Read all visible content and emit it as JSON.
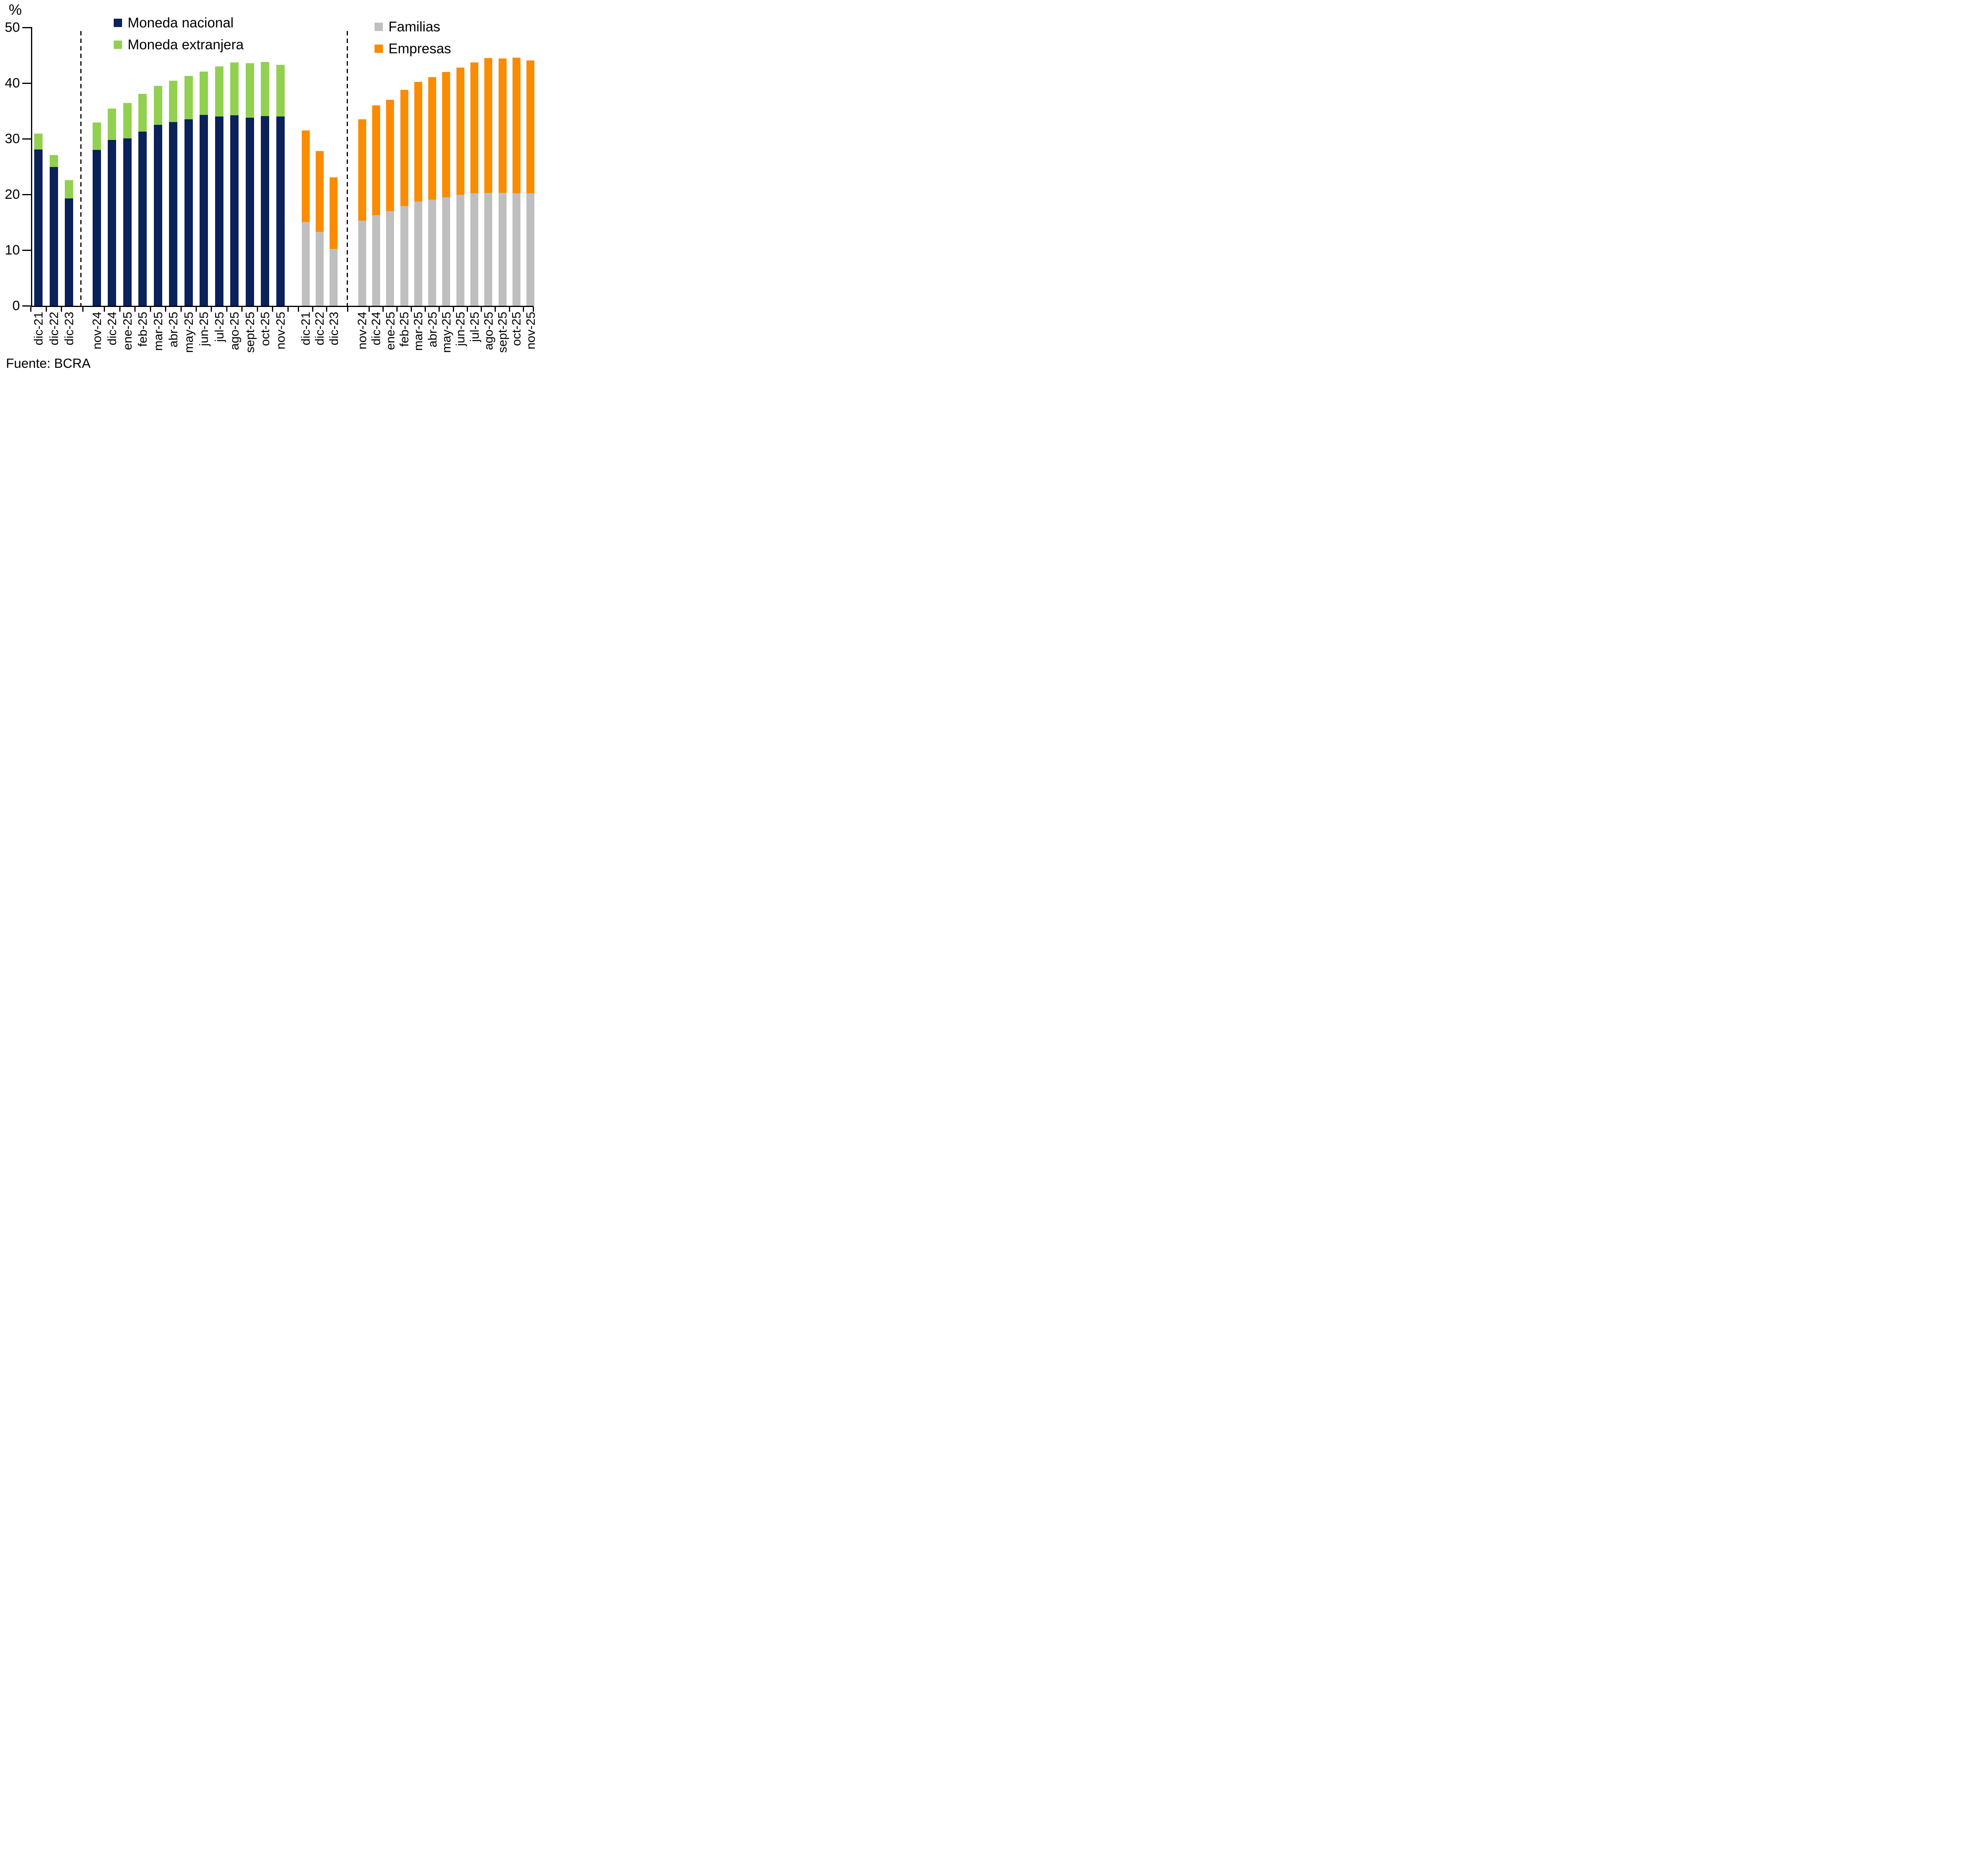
{
  "chart_data": {
    "type": "bar",
    "stacked": true,
    "title": "",
    "ylabel": "%",
    "xlabel": "",
    "ylim": [
      0,
      50
    ],
    "grid": false,
    "legend_position": "top",
    "ytick_labels": [
      "0",
      "10",
      "20",
      "30",
      "40",
      "50"
    ],
    "source": "Fuente: BCRA",
    "categories": [
      "dic-21",
      "dic-22",
      "dic-23",
      "nov-24",
      "dic-24",
      "ene-25",
      "feb-25",
      "mar-25",
      "abr-25",
      "may-25",
      "jun-25",
      "jul-25",
      "ago-25",
      "sept-25",
      "oct-25",
      "nov-25"
    ],
    "separator_after_index": 2,
    "panels": [
      {
        "id": "by-currency",
        "legend": [
          {
            "label": "Moneda nacional",
            "color": "#0B2159"
          },
          {
            "label": "Moneda extranjera",
            "color": "#92D050"
          }
        ],
        "categories": [
          "dic-21",
          "dic-22",
          "dic-23",
          "nov-24",
          "dic-24",
          "ene-25",
          "feb-25",
          "mar-25",
          "abr-25",
          "may-25",
          "jun-25",
          "jul-25",
          "ago-25",
          "sept-25",
          "oct-25",
          "nov-25"
        ],
        "series": [
          {
            "name": "Moneda nacional",
            "color": "#0B2159",
            "values": [
              28.1,
              24.9,
              19.3,
              28.0,
              29.8,
              30.1,
              31.3,
              32.5,
              33.0,
              33.5,
              34.3,
              34.0,
              34.2,
              33.8,
              34.1,
              34.0
            ]
          },
          {
            "name": "Moneda extranjera",
            "color": "#92D050",
            "values": [
              2.8,
              2.2,
              3.3,
              4.9,
              5.6,
              6.3,
              6.8,
              7.0,
              7.4,
              7.8,
              7.8,
              9.0,
              9.5,
              9.8,
              9.7,
              9.3
            ]
          }
        ]
      },
      {
        "id": "by-sector",
        "legend": [
          {
            "label": "Familias",
            "color": "#BFBFBF"
          },
          {
            "label": "Empresas",
            "color": "#FB8B00"
          }
        ],
        "categories": [
          "dic-21",
          "dic-22",
          "dic-23",
          "nov-24",
          "dic-24",
          "ene-25",
          "feb-25",
          "mar-25",
          "abr-25",
          "may-25",
          "jun-25",
          "jul-25",
          "ago-25",
          "sept-25",
          "oct-25",
          "nov-25"
        ],
        "series": [
          {
            "name": "Familias",
            "color": "#BFBFBF",
            "values": [
              15.1,
              13.3,
              10.2,
              15.3,
              16.3,
              17.0,
              17.9,
              18.7,
              19.1,
              19.5,
              19.9,
              20.2,
              20.3,
              20.3,
              20.2,
              20.2
            ]
          },
          {
            "name": "Empresas",
            "color": "#FB8B00",
            "values": [
              16.4,
              14.5,
              12.9,
              18.2,
              19.7,
              20.0,
              20.9,
              21.5,
              22.0,
              22.5,
              22.9,
              23.5,
              24.2,
              24.1,
              24.4,
              23.9
            ]
          }
        ]
      }
    ]
  }
}
